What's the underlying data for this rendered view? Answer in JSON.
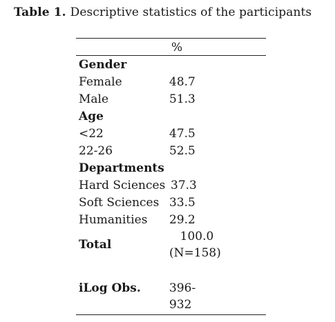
{
  "caption": {
    "label": "Table 1.",
    "text": "Descriptive statistics of the participants"
  },
  "table": {
    "header_value": "%",
    "gender": {
      "heading": "Gender",
      "female_label": "Female",
      "female_value": "48.7",
      "male_label": "Male",
      "male_value": "51.3"
    },
    "age": {
      "heading": "Age",
      "under22_label": "<22",
      "under22_value": "47.5",
      "range_label": "22-26",
      "range_value": "52.5"
    },
    "departments": {
      "heading": "Departments",
      "hard_label": "Hard Sciences",
      "hard_value": "37.3",
      "soft_label": "Soft Sciences",
      "soft_value": "33.5",
      "hum_label": "Humanities",
      "hum_value": "29.2"
    },
    "total": {
      "label": "Total",
      "value_line1": "100.0",
      "value_line2": "(N=158)"
    },
    "ilog": {
      "label": "iLog Obs.",
      "value_line1": "396-",
      "value_line2": "932"
    }
  }
}
